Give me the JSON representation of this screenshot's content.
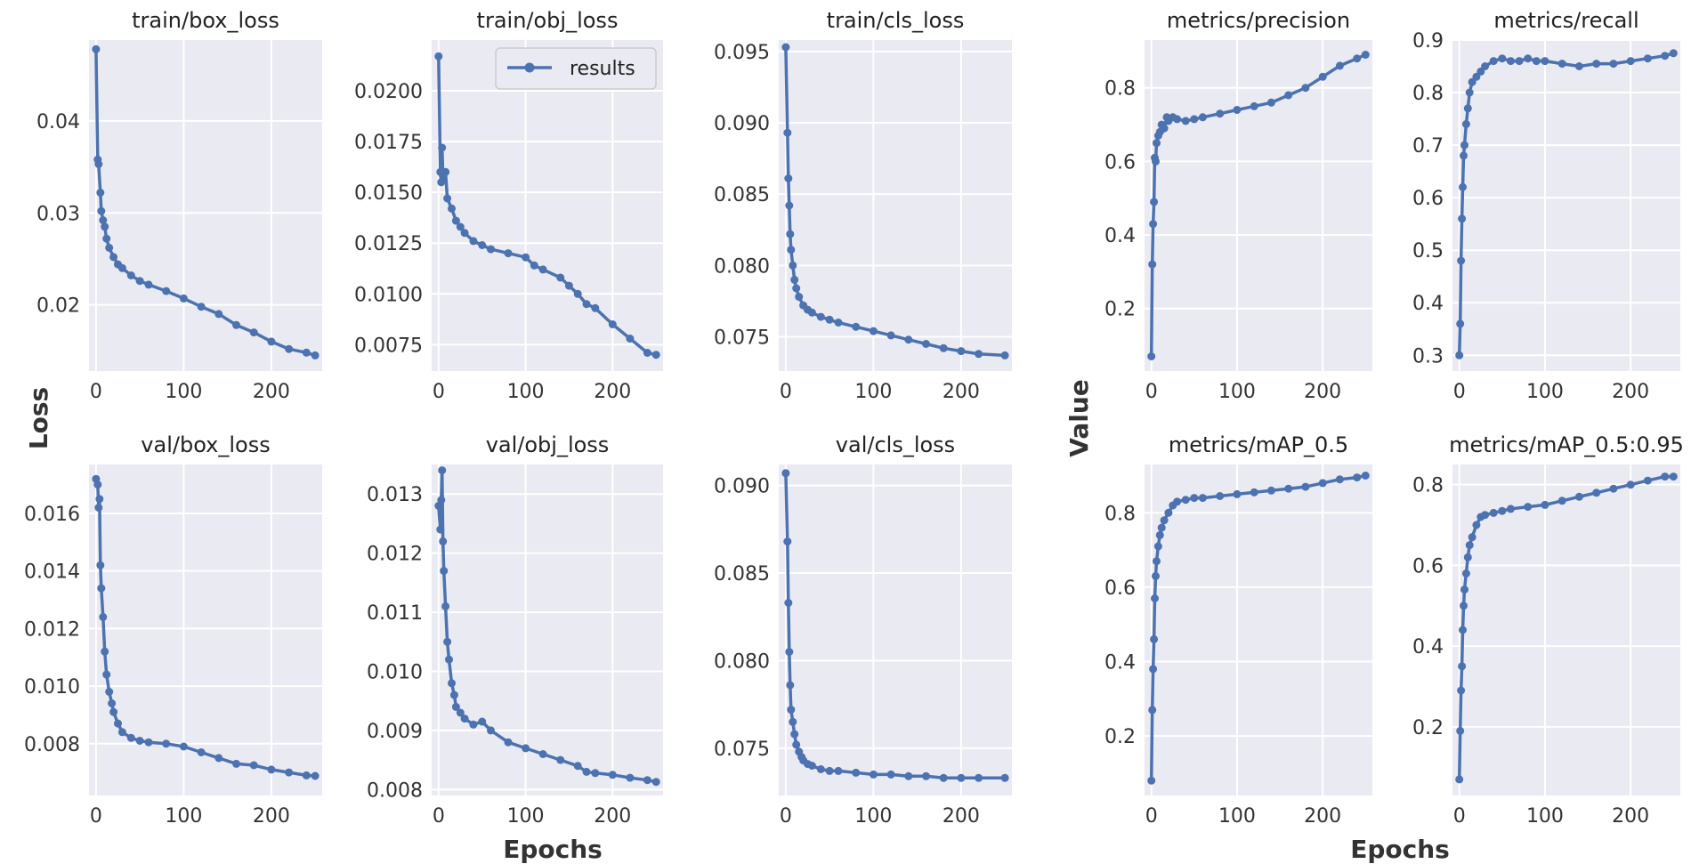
{
  "figure": {
    "axis_labels": {
      "loss": "Loss",
      "value": "Value",
      "epochs_left": "Epochs",
      "epochs_right": "Epochs"
    },
    "legend": {
      "label": "results"
    },
    "colors": {
      "series": "#4c72b0",
      "panel_background": "#eaeaf2",
      "grid": "#ffffff"
    }
  },
  "chart_data": [
    {
      "type": "line",
      "title": "train/box_loss",
      "xlabel": "Epochs",
      "ylabel": "Loss",
      "xlim": [
        -8,
        258
      ],
      "ylim": [
        0.0128,
        0.0488
      ],
      "xticks": [
        0,
        100,
        200
      ],
      "yticks": [
        0.02,
        0.03,
        0.04
      ],
      "ytick_labels": [
        "0.02",
        "0.03",
        "0.04"
      ],
      "series": [
        {
          "name": "results",
          "x": [
            0,
            2,
            3,
            5,
            6,
            8,
            10,
            12,
            15,
            20,
            25,
            30,
            40,
            50,
            60,
            80,
            100,
            120,
            140,
            160,
            180,
            200,
            220,
            240,
            250
          ],
          "y": [
            0.0478,
            0.0358,
            0.0353,
            0.0322,
            0.0302,
            0.0292,
            0.0285,
            0.0272,
            0.0262,
            0.0252,
            0.0244,
            0.024,
            0.0232,
            0.0226,
            0.0222,
            0.0215,
            0.0207,
            0.0198,
            0.019,
            0.0178,
            0.017,
            0.016,
            0.0152,
            0.0148,
            0.0145
          ]
        }
      ]
    },
    {
      "type": "line",
      "title": "train/obj_loss",
      "xlabel": "Epochs",
      "ylabel": "Loss",
      "xlim": [
        -8,
        258
      ],
      "ylim": [
        0.0062,
        0.0225
      ],
      "xticks": [
        0,
        100,
        200
      ],
      "yticks": [
        0.0075,
        0.01,
        0.0125,
        0.015,
        0.0175,
        0.02
      ],
      "ytick_labels": [
        "0.0075",
        "0.0100",
        "0.0125",
        "0.0150",
        "0.0175",
        "0.0200"
      ],
      "series": [
        {
          "name": "results",
          "x": [
            0,
            2,
            3,
            4,
            5,
            8,
            10,
            15,
            20,
            25,
            30,
            40,
            50,
            60,
            80,
            100,
            110,
            120,
            140,
            150,
            160,
            170,
            180,
            200,
            220,
            240,
            250
          ],
          "y": [
            0.0217,
            0.016,
            0.0155,
            0.0172,
            0.0158,
            0.016,
            0.0147,
            0.0142,
            0.0136,
            0.0133,
            0.013,
            0.0126,
            0.0124,
            0.0122,
            0.012,
            0.0118,
            0.0114,
            0.0112,
            0.0108,
            0.0104,
            0.01,
            0.0095,
            0.0093,
            0.0085,
            0.0078,
            0.0071,
            0.007
          ]
        }
      ]
    },
    {
      "type": "line",
      "title": "train/cls_loss",
      "xlabel": "Epochs",
      "ylabel": "Loss",
      "xlim": [
        -8,
        258
      ],
      "ylim": [
        0.0726,
        0.0958
      ],
      "xticks": [
        0,
        100,
        200
      ],
      "yticks": [
        0.075,
        0.08,
        0.085,
        0.09,
        0.095
      ],
      "ytick_labels": [
        "0.075",
        "0.080",
        "0.085",
        "0.090",
        "0.095"
      ],
      "series": [
        {
          "name": "results",
          "x": [
            0,
            2,
            3,
            4,
            5,
            6,
            8,
            10,
            12,
            15,
            20,
            25,
            30,
            40,
            50,
            60,
            80,
            100,
            120,
            140,
            160,
            180,
            200,
            220,
            250
          ],
          "y": [
            0.0953,
            0.0893,
            0.0861,
            0.0842,
            0.0822,
            0.0811,
            0.08,
            0.079,
            0.0784,
            0.0778,
            0.0772,
            0.0769,
            0.0767,
            0.0764,
            0.0762,
            0.076,
            0.0757,
            0.0754,
            0.0751,
            0.0748,
            0.0745,
            0.0742,
            0.074,
            0.0738,
            0.0737
          ]
        }
      ]
    },
    {
      "type": "line",
      "title": "metrics/precision",
      "xlabel": "Epochs",
      "ylabel": "Value",
      "xlim": [
        -8,
        258
      ],
      "ylim": [
        0.03,
        0.93
      ],
      "xticks": [
        0,
        100,
        200
      ],
      "yticks": [
        0.2,
        0.4,
        0.6,
        0.8
      ],
      "ytick_labels": [
        "0.2",
        "0.4",
        "0.6",
        "0.8"
      ],
      "series": [
        {
          "name": "results",
          "x": [
            0,
            1,
            2,
            3,
            4,
            5,
            6,
            8,
            10,
            12,
            15,
            18,
            20,
            25,
            30,
            40,
            50,
            60,
            80,
            100,
            120,
            140,
            160,
            180,
            200,
            220,
            240,
            250
          ],
          "y": [
            0.07,
            0.32,
            0.43,
            0.49,
            0.61,
            0.6,
            0.65,
            0.67,
            0.68,
            0.7,
            0.69,
            0.72,
            0.71,
            0.72,
            0.715,
            0.71,
            0.715,
            0.72,
            0.73,
            0.74,
            0.75,
            0.76,
            0.78,
            0.8,
            0.83,
            0.86,
            0.88,
            0.89
          ]
        }
      ]
    },
    {
      "type": "line",
      "title": "metrics/recall",
      "xlabel": "Epochs",
      "ylabel": "Value",
      "xlim": [
        -8,
        258
      ],
      "ylim": [
        0.27,
        0.9
      ],
      "xticks": [
        0,
        100,
        200
      ],
      "yticks": [
        0.3,
        0.4,
        0.5,
        0.6,
        0.7,
        0.8,
        0.9
      ],
      "ytick_labels": [
        "0.3",
        "0.4",
        "0.5",
        "0.6",
        "0.7",
        "0.8",
        "0.9"
      ],
      "series": [
        {
          "name": "results",
          "x": [
            0,
            1,
            2,
            3,
            4,
            5,
            6,
            8,
            10,
            12,
            15,
            20,
            25,
            30,
            40,
            50,
            60,
            70,
            80,
            90,
            100,
            120,
            140,
            160,
            180,
            200,
            220,
            240,
            250
          ],
          "y": [
            0.3,
            0.36,
            0.48,
            0.56,
            0.62,
            0.68,
            0.7,
            0.74,
            0.77,
            0.8,
            0.82,
            0.83,
            0.84,
            0.85,
            0.86,
            0.865,
            0.86,
            0.86,
            0.865,
            0.86,
            0.86,
            0.855,
            0.85,
            0.855,
            0.855,
            0.86,
            0.865,
            0.87,
            0.875
          ]
        }
      ]
    },
    {
      "type": "line",
      "title": "val/box_loss",
      "xlabel": "Epochs",
      "ylabel": "Loss",
      "xlim": [
        -8,
        258
      ],
      "ylim": [
        0.0062,
        0.0177
      ],
      "xticks": [
        0,
        100,
        200
      ],
      "yticks": [
        0.008,
        0.01,
        0.012,
        0.014,
        0.016
      ],
      "ytick_labels": [
        "0.008",
        "0.010",
        "0.012",
        "0.014",
        "0.016"
      ],
      "series": [
        {
          "name": "results",
          "x": [
            0,
            2,
            3,
            4,
            5,
            6,
            8,
            10,
            12,
            15,
            18,
            20,
            25,
            30,
            40,
            50,
            60,
            80,
            100,
            120,
            140,
            160,
            180,
            200,
            220,
            240,
            250
          ],
          "y": [
            0.0172,
            0.017,
            0.0162,
            0.0165,
            0.0142,
            0.0134,
            0.0124,
            0.0112,
            0.0104,
            0.0098,
            0.0094,
            0.0091,
            0.0087,
            0.0084,
            0.0082,
            0.0081,
            0.00805,
            0.008,
            0.0079,
            0.0077,
            0.0075,
            0.0073,
            0.00725,
            0.0071,
            0.007,
            0.0069,
            0.00688
          ]
        }
      ]
    },
    {
      "type": "line",
      "title": "val/obj_loss",
      "xlabel": "Epochs",
      "ylabel": "Loss",
      "xlim": [
        -8,
        258
      ],
      "ylim": [
        0.0079,
        0.0135
      ],
      "xticks": [
        0,
        100,
        200
      ],
      "yticks": [
        0.008,
        0.009,
        0.01,
        0.011,
        0.012,
        0.013
      ],
      "ytick_labels": [
        "0.008",
        "0.009",
        "0.010",
        "0.011",
        "0.012",
        "0.013"
      ],
      "series": [
        {
          "name": "results",
          "x": [
            0,
            2,
            3,
            4,
            5,
            6,
            8,
            10,
            12,
            15,
            18,
            20,
            25,
            30,
            40,
            50,
            60,
            80,
            100,
            120,
            140,
            160,
            170,
            180,
            200,
            220,
            240,
            250
          ],
          "y": [
            0.0128,
            0.0124,
            0.0129,
            0.0134,
            0.0122,
            0.0117,
            0.0111,
            0.0105,
            0.0102,
            0.0098,
            0.0096,
            0.0094,
            0.0093,
            0.0092,
            0.0091,
            0.00915,
            0.009,
            0.0088,
            0.0087,
            0.0086,
            0.0085,
            0.0084,
            0.0083,
            0.00828,
            0.00825,
            0.0082,
            0.00816,
            0.00813
          ]
        }
      ]
    },
    {
      "type": "line",
      "title": "val/cls_loss",
      "xlabel": "Epochs",
      "ylabel": "Loss",
      "xlim": [
        -8,
        258
      ],
      "ylim": [
        0.0723,
        0.0912
      ],
      "xticks": [
        0,
        100,
        200
      ],
      "yticks": [
        0.075,
        0.08,
        0.085,
        0.09
      ],
      "ytick_labels": [
        "0.075",
        "0.080",
        "0.085",
        "0.090"
      ],
      "series": [
        {
          "name": "results",
          "x": [
            0,
            2,
            3,
            4,
            5,
            6,
            8,
            10,
            12,
            15,
            18,
            20,
            25,
            30,
            40,
            50,
            60,
            80,
            100,
            120,
            140,
            160,
            180,
            200,
            220,
            250
          ],
          "y": [
            0.0907,
            0.0868,
            0.0833,
            0.0805,
            0.0786,
            0.0772,
            0.0765,
            0.0758,
            0.0752,
            0.0748,
            0.0745,
            0.0743,
            0.0741,
            0.074,
            0.0738,
            0.0737,
            0.0737,
            0.0736,
            0.0735,
            0.0735,
            0.0734,
            0.0734,
            0.0733,
            0.0733,
            0.0733,
            0.0733
          ]
        }
      ]
    },
    {
      "type": "line",
      "title": "metrics/mAP_0.5",
      "xlabel": "Epochs",
      "ylabel": "Value",
      "xlim": [
        -8,
        258
      ],
      "ylim": [
        0.04,
        0.93
      ],
      "xticks": [
        0,
        100,
        200
      ],
      "yticks": [
        0.2,
        0.4,
        0.6,
        0.8
      ],
      "ytick_labels": [
        "0.2",
        "0.4",
        "0.6",
        "0.8"
      ],
      "series": [
        {
          "name": "results",
          "x": [
            0,
            1,
            2,
            3,
            4,
            5,
            6,
            8,
            10,
            12,
            15,
            20,
            25,
            30,
            40,
            50,
            60,
            80,
            100,
            120,
            140,
            160,
            180,
            200,
            220,
            240,
            250
          ],
          "y": [
            0.08,
            0.27,
            0.38,
            0.46,
            0.57,
            0.63,
            0.67,
            0.71,
            0.74,
            0.76,
            0.78,
            0.8,
            0.82,
            0.83,
            0.835,
            0.84,
            0.84,
            0.845,
            0.85,
            0.855,
            0.86,
            0.865,
            0.87,
            0.88,
            0.89,
            0.895,
            0.9
          ]
        }
      ]
    },
    {
      "type": "line",
      "title": "metrics/mAP_0.5:0.95",
      "xlabel": "Epochs",
      "ylabel": "Value",
      "xlim": [
        -8,
        258
      ],
      "ylim": [
        0.03,
        0.85
      ],
      "xticks": [
        0,
        100,
        200
      ],
      "yticks": [
        0.2,
        0.4,
        0.6,
        0.8
      ],
      "ytick_labels": [
        "0.2",
        "0.4",
        "0.6",
        "0.8"
      ],
      "series": [
        {
          "name": "results",
          "x": [
            0,
            1,
            2,
            3,
            4,
            5,
            6,
            8,
            10,
            12,
            15,
            20,
            25,
            30,
            40,
            50,
            60,
            80,
            100,
            120,
            140,
            160,
            180,
            200,
            220,
            240,
            250
          ],
          "y": [
            0.07,
            0.19,
            0.29,
            0.35,
            0.44,
            0.5,
            0.54,
            0.58,
            0.62,
            0.65,
            0.67,
            0.7,
            0.72,
            0.725,
            0.73,
            0.735,
            0.74,
            0.745,
            0.75,
            0.76,
            0.77,
            0.78,
            0.79,
            0.8,
            0.81,
            0.82,
            0.82
          ]
        }
      ]
    }
  ]
}
